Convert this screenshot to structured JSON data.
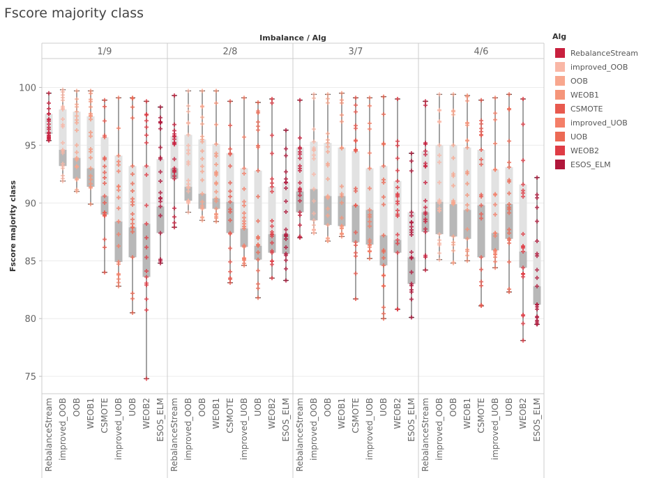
{
  "chart_data": {
    "type": "box",
    "title": "Fscore majority class",
    "column_header": "Imbalance / Alg",
    "ylabel": "Fscore majority class",
    "ylim": [
      73.5,
      102.5
    ],
    "yticks": [
      75,
      80,
      85,
      90,
      95,
      100
    ],
    "legend_title": "Alg",
    "legend_placement": "right",
    "grid": true,
    "panels": [
      "1/9",
      "2/8",
      "3/7",
      "4/6"
    ],
    "algorithms": [
      "RebalanceStream",
      "improved_OOB",
      "OOB",
      "WEOB1",
      "CSMOTE",
      "improved_UOB",
      "UOB",
      "WEOB2",
      "ESOS_ELM"
    ],
    "colors": {
      "RebalanceStream": "#c8203e",
      "improved_OOB": "#f9b7a6",
      "OOB": "#f8a78e",
      "WEOB1": "#f5957a",
      "CSMOTE": "#e85a4f",
      "improved_UOB": "#f47f68",
      "UOB": "#ec6a55",
      "WEOB2": "#df3c45",
      "ESOS_ELM": "#b0173b"
    },
    "boxes": {
      "1/9": [
        {
          "min": 95.4,
          "q1": 96.0,
          "median": 96.1,
          "q3": 97.7,
          "max": 99.5
        },
        {
          "min": 91.9,
          "q1": 93.2,
          "median": 94.6,
          "q3": 98.1,
          "max": 99.8
        },
        {
          "min": 91.0,
          "q1": 92.1,
          "median": 93.9,
          "q3": 97.9,
          "max": 99.7
        },
        {
          "min": 89.9,
          "q1": 91.4,
          "median": 93.0,
          "q3": 97.5,
          "max": 99.7
        },
        {
          "min": 84.0,
          "q1": 89.0,
          "median": 90.6,
          "q3": 95.7,
          "max": 98.9
        },
        {
          "min": 82.8,
          "q1": 84.9,
          "median": 88.4,
          "q3": 94.1,
          "max": 99.1
        },
        {
          "min": 80.5,
          "q1": 85.3,
          "median": 87.9,
          "q3": 93.2,
          "max": 99.1
        },
        {
          "min": 74.8,
          "q1": 83.6,
          "median": 88.2,
          "q3": 93.2,
          "max": 98.8
        },
        {
          "min": 84.8,
          "q1": 87.4,
          "median": 89.7,
          "q3": 93.8,
          "max": 98.3
        }
      ],
      "2/8": [
        {
          "min": 87.9,
          "q1": 92.1,
          "median": 93.0,
          "q3": 95.8,
          "max": 99.3
        },
        {
          "min": 89.2,
          "q1": 90.2,
          "median": 91.4,
          "q3": 95.9,
          "max": 99.7
        },
        {
          "min": 88.5,
          "q1": 89.5,
          "median": 90.8,
          "q3": 95.5,
          "max": 99.7
        },
        {
          "min": 88.4,
          "q1": 89.5,
          "median": 90.4,
          "q3": 95.1,
          "max": 99.7
        },
        {
          "min": 83.1,
          "q1": 87.4,
          "median": 90.1,
          "q3": 94.3,
          "max": 98.8
        },
        {
          "min": 84.6,
          "q1": 86.2,
          "median": 87.8,
          "q3": 93.0,
          "max": 99.1
        },
        {
          "min": 81.8,
          "q1": 85.1,
          "median": 86.3,
          "q3": 92.8,
          "max": 98.7
        },
        {
          "min": 83.5,
          "q1": 85.7,
          "median": 87.3,
          "q3": 91.4,
          "max": 99.0
        },
        {
          "min": 83.3,
          "q1": 85.6,
          "median": 87.3,
          "q3": 91.8,
          "max": 96.3
        }
      ],
      "3/7": [
        {
          "min": 87.0,
          "q1": 89.2,
          "median": 91.0,
          "q3": 94.8,
          "max": 98.9
        },
        {
          "min": 87.4,
          "q1": 88.5,
          "median": 91.2,
          "q3": 95.3,
          "max": 99.4
        },
        {
          "min": 86.7,
          "q1": 88.1,
          "median": 90.6,
          "q3": 95.2,
          "max": 99.4
        },
        {
          "min": 87.1,
          "q1": 88.0,
          "median": 90.6,
          "q3": 94.8,
          "max": 99.5
        },
        {
          "min": 81.7,
          "q1": 86.6,
          "median": 89.8,
          "q3": 94.5,
          "max": 99.1
        },
        {
          "min": 85.2,
          "q1": 86.4,
          "median": 89.4,
          "q3": 93.0,
          "max": 99.1
        },
        {
          "min": 80.0,
          "q1": 84.6,
          "median": 87.2,
          "q3": 93.2,
          "max": 99.2
        },
        {
          "min": 80.8,
          "q1": 85.7,
          "median": 86.8,
          "q3": 91.9,
          "max": 99.0
        },
        {
          "min": 80.1,
          "q1": 83.0,
          "median": 85.3,
          "q3": 89.2,
          "max": 94.3
        }
      ],
      "4/6": [
        {
          "min": 84.2,
          "q1": 87.5,
          "median": 89.2,
          "q3": 94.5,
          "max": 98.8
        },
        {
          "min": 85.1,
          "q1": 87.3,
          "median": 90.1,
          "q3": 95.0,
          "max": 99.4
        },
        {
          "min": 84.8,
          "q1": 87.1,
          "median": 89.9,
          "q3": 95.0,
          "max": 99.4
        },
        {
          "min": 85.0,
          "q1": 86.9,
          "median": 89.4,
          "q3": 94.8,
          "max": 99.3
        },
        {
          "min": 81.1,
          "q1": 85.3,
          "median": 89.8,
          "q3": 94.6,
          "max": 98.9
        },
        {
          "min": 84.4,
          "q1": 85.9,
          "median": 87.4,
          "q3": 92.9,
          "max": 99.1
        },
        {
          "min": 82.3,
          "q1": 86.9,
          "median": 89.9,
          "q3": 93.1,
          "max": 99.4
        },
        {
          "min": 78.1,
          "q1": 84.4,
          "median": 85.8,
          "q3": 91.6,
          "max": 99.0
        },
        {
          "min": 79.5,
          "q1": 81.2,
          "median": 82.8,
          "q3": 86.7,
          "max": 92.2
        }
      ]
    }
  }
}
